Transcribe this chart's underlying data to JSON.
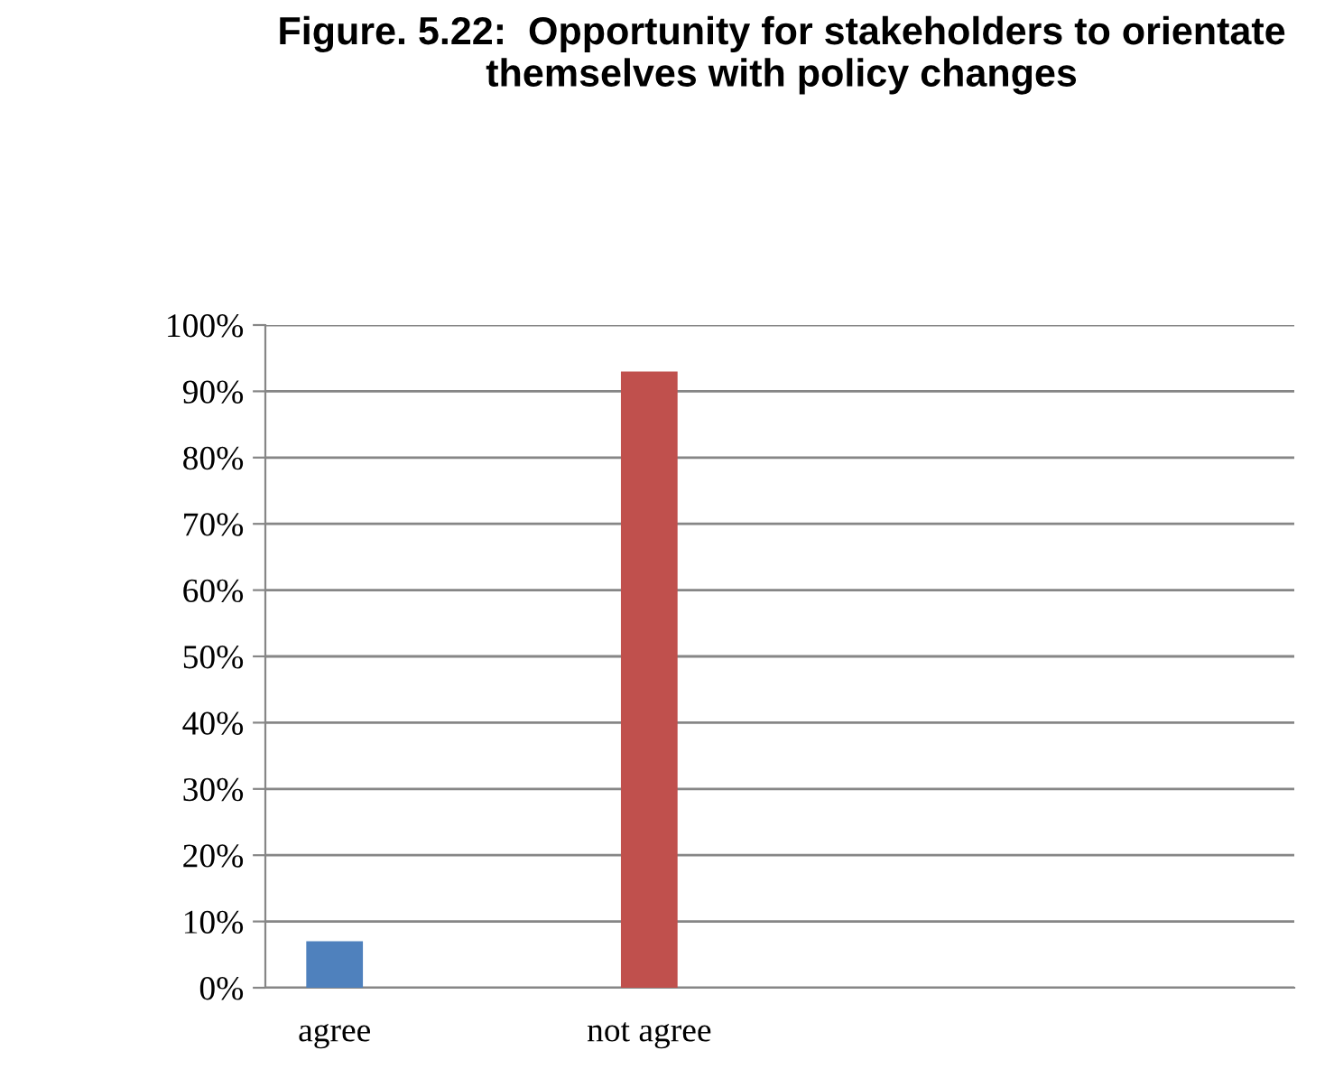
{
  "chart_data": {
    "type": "bar",
    "title": "Figure. 5.22:  Opportunity for stakeholders to orientate themselves with policy changes",
    "categories": [
      "agree",
      "not agree"
    ],
    "values": [
      7,
      93
    ],
    "colors": [
      "#4f81bd",
      "#c0504d"
    ],
    "ylim": [
      0,
      100
    ],
    "yticks": [
      {
        "value": 0,
        "label": "0%"
      },
      {
        "value": 10,
        "label": "10%"
      },
      {
        "value": 20,
        "label": "20%"
      },
      {
        "value": 30,
        "label": "30%"
      },
      {
        "value": 40,
        "label": "40%"
      },
      {
        "value": 50,
        "label": "50%"
      },
      {
        "value": 60,
        "label": "60%"
      },
      {
        "value": 70,
        "label": "70%"
      },
      {
        "value": 80,
        "label": "80%"
      },
      {
        "value": 90,
        "label": "90%"
      },
      {
        "value": 100,
        "label": "100%"
      }
    ],
    "grid": "y",
    "legend": false
  }
}
